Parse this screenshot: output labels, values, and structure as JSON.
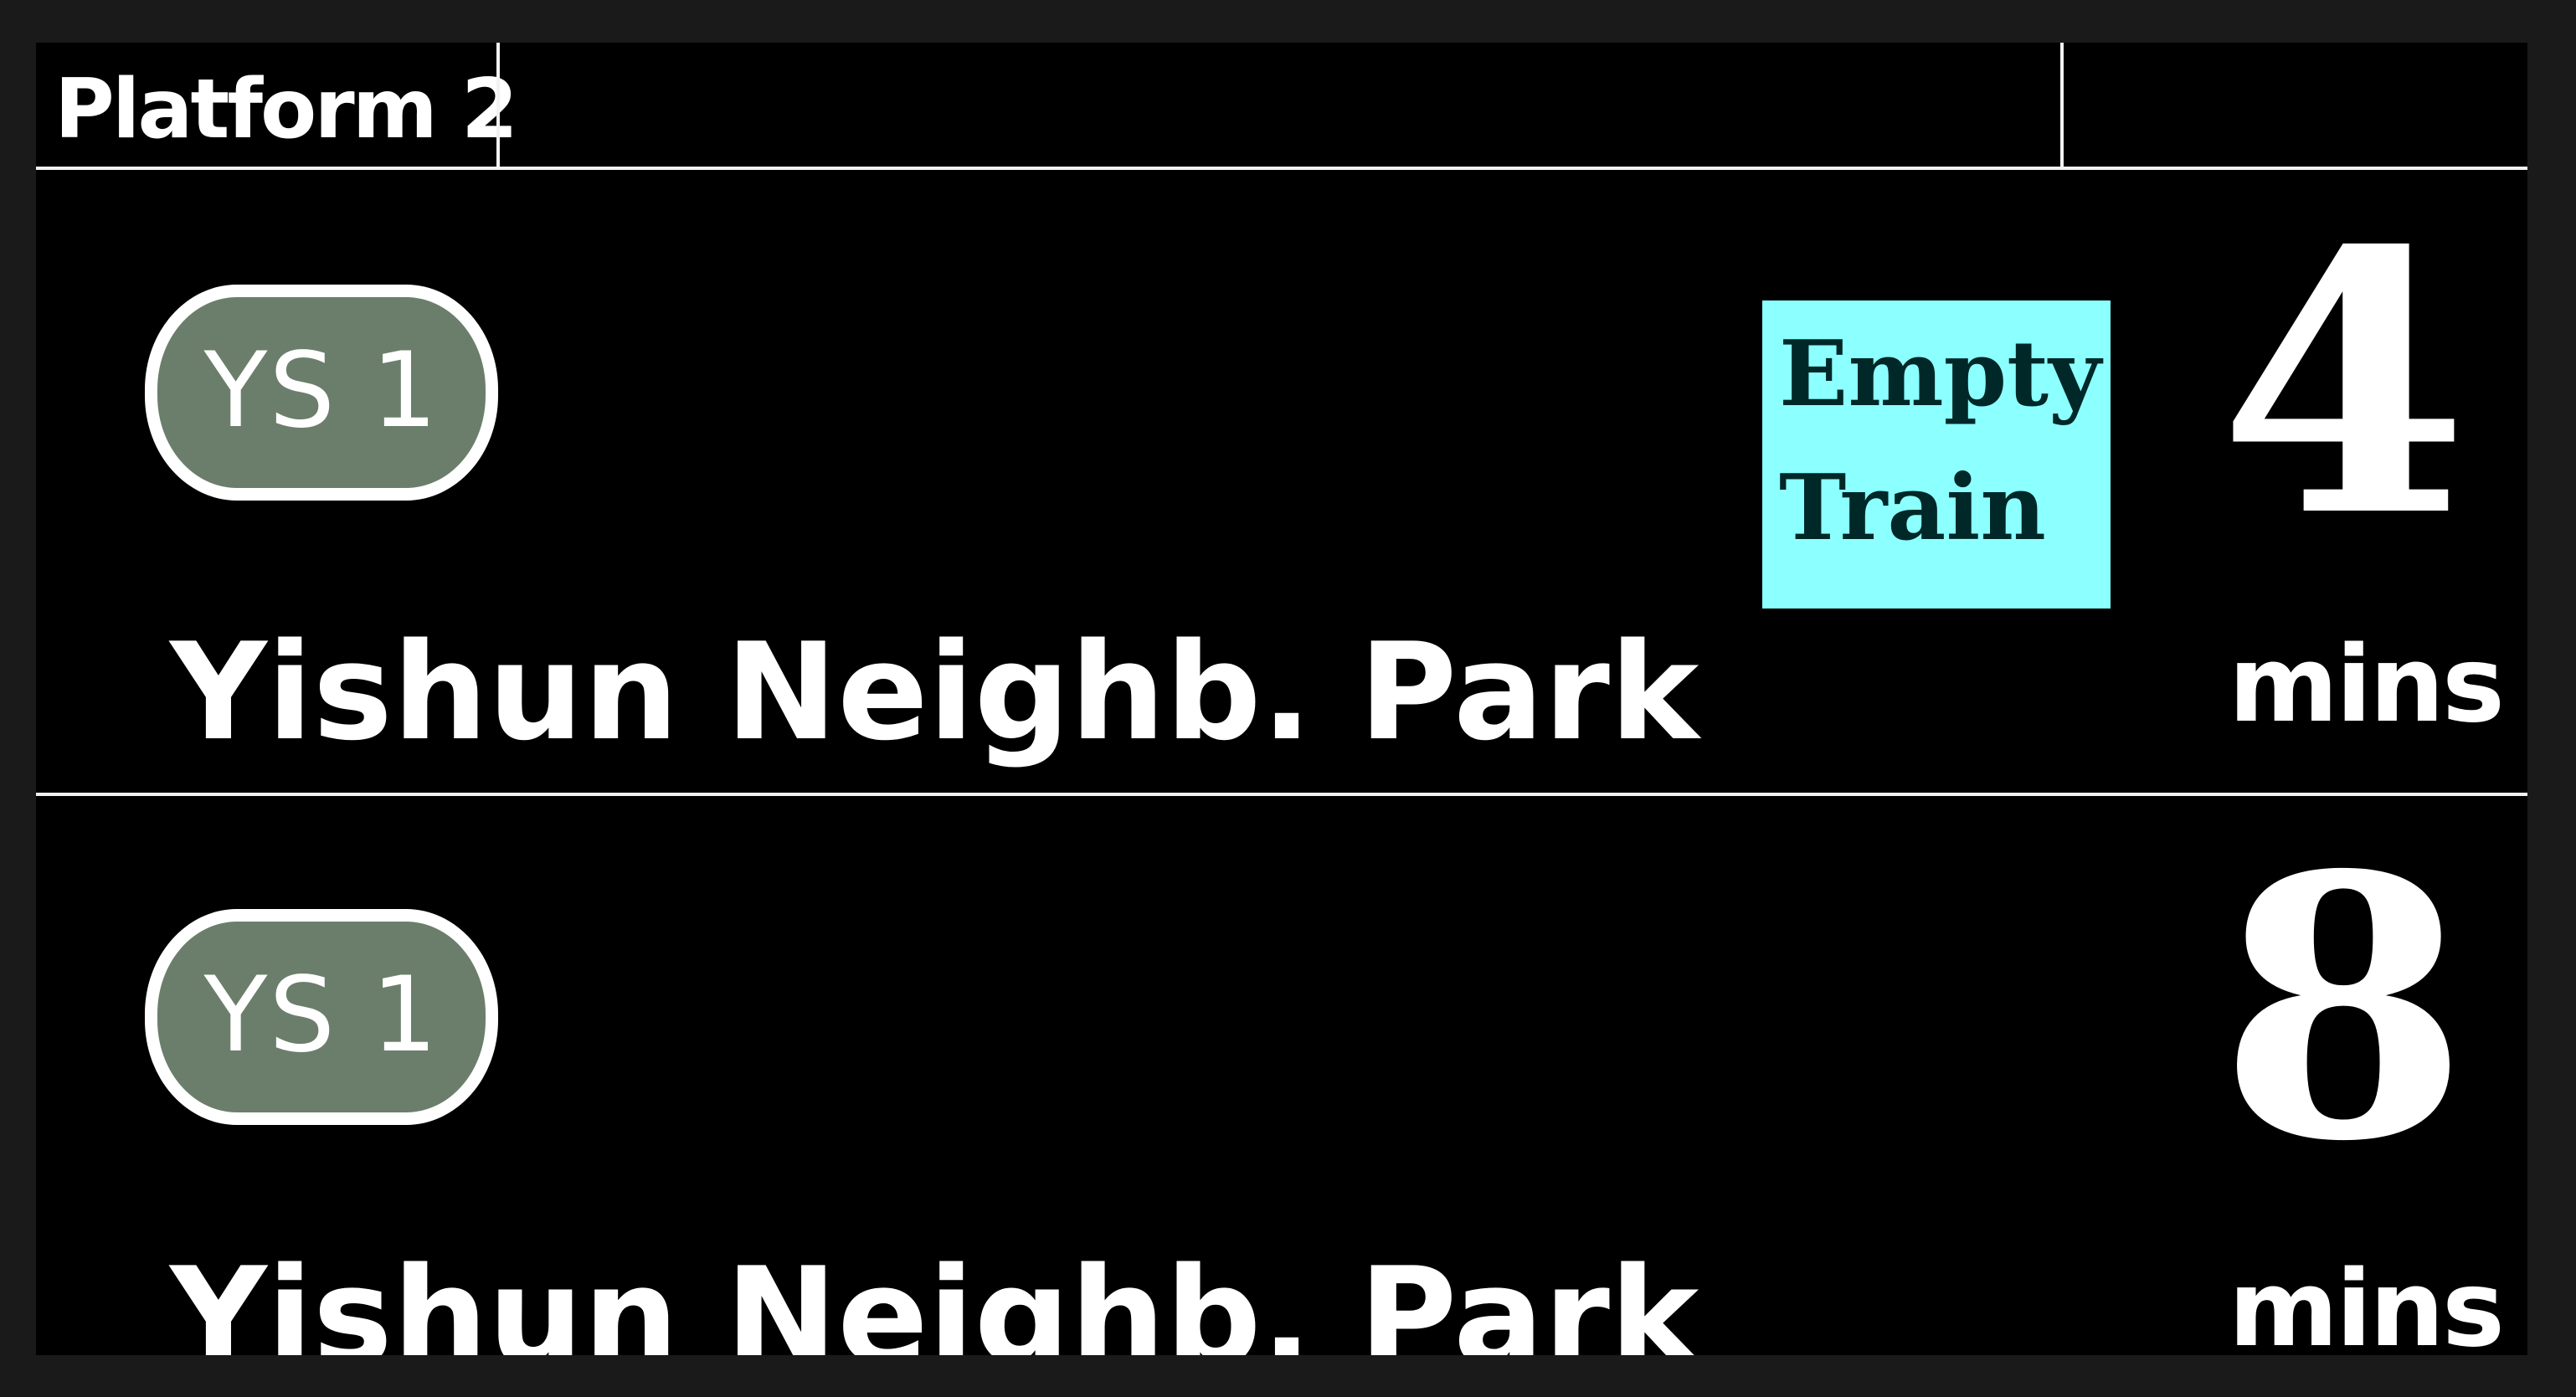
{
  "header": {
    "platform": "Platform 2"
  },
  "arrivals": [
    {
      "station_code": "YS 1",
      "destination": "Yishun Neighb. Park",
      "status_lines": [
        "Empty",
        "Train"
      ],
      "minutes": "4",
      "unit": "mins"
    },
    {
      "station_code": "YS 1",
      "destination": "Yishun Neighb. Park",
      "minutes": "8",
      "unit": "mins"
    }
  ],
  "colors": {
    "background": "#000000",
    "badge_fill": "#6b7e6b",
    "status_tag": "#8cffff",
    "text": "#ffffff"
  }
}
